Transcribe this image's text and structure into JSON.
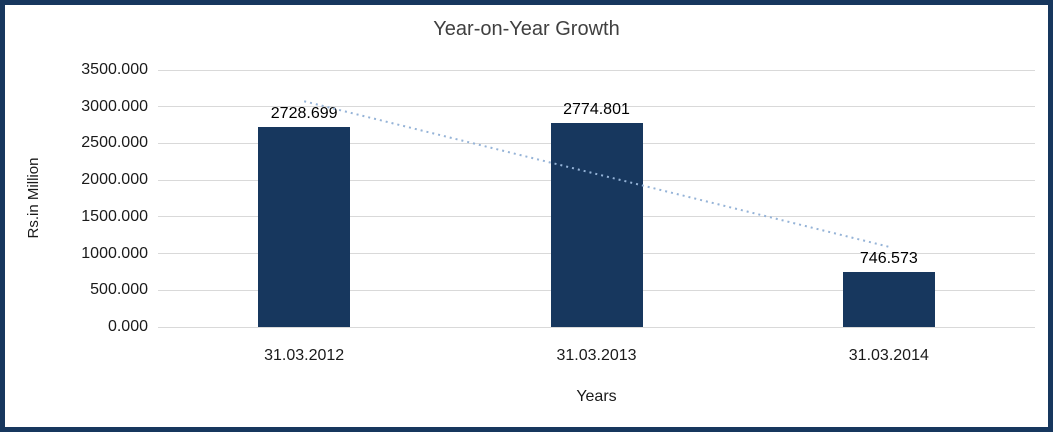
{
  "chart_data": {
    "type": "bar",
    "title": "Year-on-Year Growth",
    "categories": [
      "31.03.2012",
      "31.03.2013",
      "31.03.2014"
    ],
    "values": [
      2728.699,
      2774.801,
      746.573
    ],
    "data_labels": [
      "2728.699",
      "2774.801",
      "746.573"
    ],
    "xlabel": "Years",
    "ylabel": "Rs.in Million",
    "ylim": [
      0,
      3500
    ],
    "ytick_step": 500,
    "ytick_labels": [
      "0.000",
      "500.000",
      "1000.000",
      "1500.000",
      "2000.000",
      "2500.000",
      "3000.000",
      "3500.000"
    ],
    "grid": true,
    "legend": "none",
    "bar_color": "#17375E",
    "frame_border_color": "#17375E",
    "grid_color": "#D9D9D9",
    "trendline": {
      "type": "linear",
      "style": "dotted",
      "color": "#95B3D7"
    }
  }
}
